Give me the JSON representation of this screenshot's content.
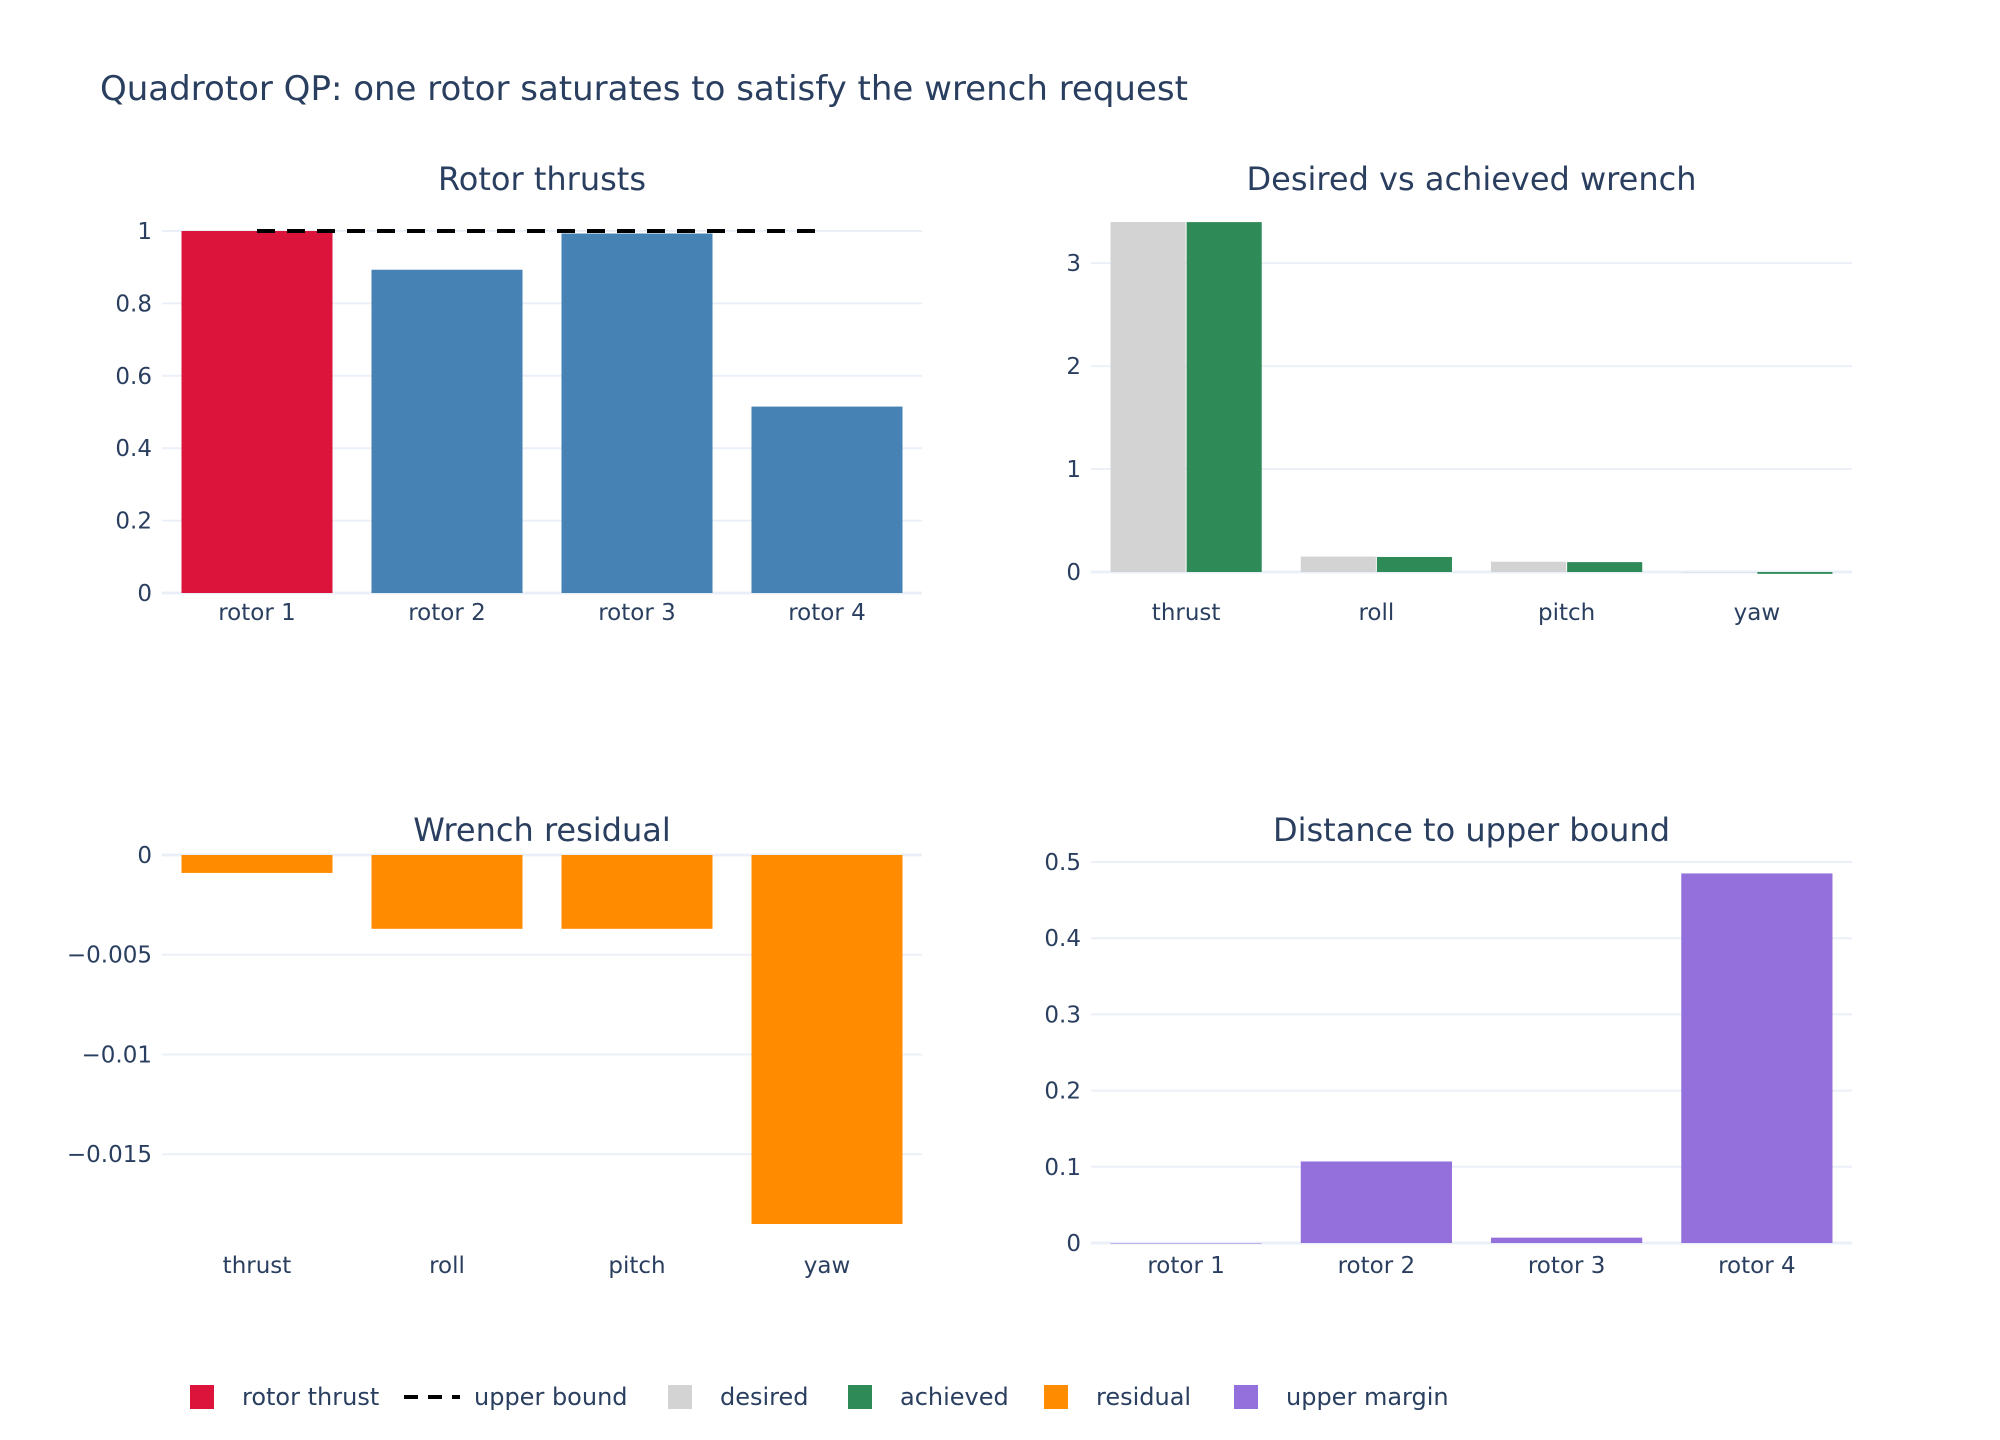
{
  "title": "Quadrotor QP: one rotor saturates to satisfy the wrench request",
  "colors": {
    "rotor_thrust_saturated": "#dc143c",
    "rotor_thrust": "#4682b4",
    "upper_bound": "#000000",
    "desired": "#d3d3d3",
    "achieved": "#2e8b57",
    "residual": "#ff8c00",
    "upper_margin": "#9370db",
    "grid": "#ebf0f8",
    "text": "#2a3f5f"
  },
  "legend": [
    {
      "label": "rotor thrust",
      "type": "square",
      "color": "#dc143c"
    },
    {
      "label": "upper bound",
      "type": "dash",
      "color": "#000000"
    },
    {
      "label": "desired",
      "type": "square",
      "color": "#d3d3d3"
    },
    {
      "label": "achieved",
      "type": "square",
      "color": "#2e8b57"
    },
    {
      "label": "residual",
      "type": "square",
      "color": "#ff8c00"
    },
    {
      "label": "upper margin",
      "type": "square",
      "color": "#9370db"
    }
  ],
  "chart_data": [
    {
      "type": "bar",
      "title": "Rotor thrusts",
      "categories": [
        "rotor 1",
        "rotor 2",
        "rotor 3",
        "rotor 4"
      ],
      "ylim": [
        0,
        1.0
      ],
      "yticks": [
        0,
        0.2,
        0.4,
        0.6,
        0.8,
        1
      ],
      "ytick_labels": [
        "0",
        "0.2",
        "0.4",
        "0.6",
        "0.8",
        "1"
      ],
      "series": [
        {
          "name": "rotor thrust",
          "values": [
            1.0,
            0.893,
            0.993,
            0.515
          ],
          "colors": [
            "#dc143c",
            "#4682b4",
            "#4682b4",
            "#4682b4"
          ]
        }
      ],
      "lines": [
        {
          "name": "upper bound",
          "x": [
            "rotor 1",
            "rotor 4"
          ],
          "y": [
            1.0,
            1.0
          ],
          "color": "#000000",
          "dash": true
        }
      ]
    },
    {
      "type": "bar",
      "title": "Desired vs achieved wrench",
      "categories": [
        "thrust",
        "roll",
        "pitch",
        "yaw"
      ],
      "ylim": [
        0,
        3.4
      ],
      "yticks": [
        0,
        1,
        2,
        3
      ],
      "ytick_labels": [
        "0",
        "1",
        "2",
        "3"
      ],
      "series": [
        {
          "name": "desired",
          "values": [
            3.4,
            0.15,
            0.1,
            0.0
          ],
          "color": "#d3d3d3"
        },
        {
          "name": "achieved",
          "values": [
            3.399,
            0.146,
            0.096,
            -0.018
          ],
          "color": "#2e8b57"
        }
      ]
    },
    {
      "type": "bar",
      "title": "Wrench residual",
      "categories": [
        "thrust",
        "roll",
        "pitch",
        "yaw"
      ],
      "ylim": [
        -0.0185,
        0
      ],
      "yticks": [
        0,
        -0.005,
        -0.01,
        -0.015
      ],
      "ytick_labels": [
        "0",
        "−0.005",
        "−0.01",
        "−0.015"
      ],
      "series": [
        {
          "name": "residual",
          "values": [
            -0.0009,
            -0.0037,
            -0.0037,
            -0.0185
          ],
          "color": "#ff8c00"
        }
      ]
    },
    {
      "type": "bar",
      "title": "Distance to upper bound",
      "categories": [
        "rotor 1",
        "rotor 2",
        "rotor 3",
        "rotor 4"
      ],
      "ylim": [
        0,
        0.5
      ],
      "yticks": [
        0,
        0.1,
        0.2,
        0.3,
        0.4,
        0.5
      ],
      "ytick_labels": [
        "0",
        "0.1",
        "0.2",
        "0.3",
        "0.4",
        "0.5"
      ],
      "series": [
        {
          "name": "upper margin",
          "values": [
            0.0,
            0.107,
            0.007,
            0.485
          ],
          "color": "#9370db"
        }
      ]
    }
  ]
}
